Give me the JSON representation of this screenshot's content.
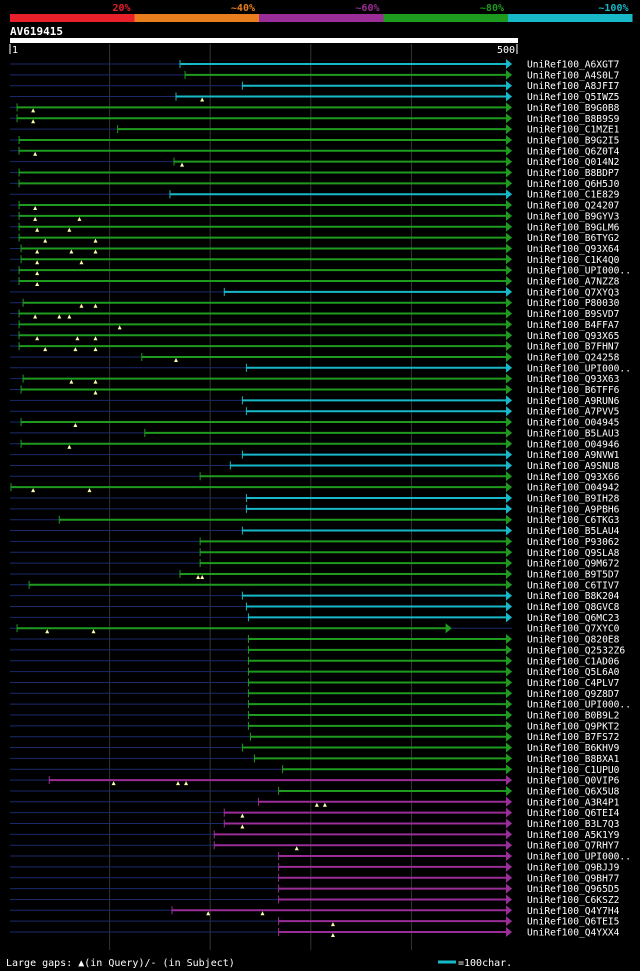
{
  "chart_data": {
    "type": "alignment-overview",
    "title": "AV619415",
    "query_length": 500,
    "axis": {
      "start_label": "1",
      "end_label": "500"
    },
    "identity_legend": [
      {
        "label": "20%",
        "color": "#e8202a"
      },
      {
        "label": "~40%",
        "color": "#e87e1e"
      },
      {
        "label": "~60%",
        "color": "#9a2d97"
      },
      {
        "label": "~80%",
        "color": "#1e9b1e"
      },
      {
        "label": "~100%",
        "color": "#17b8c8"
      }
    ],
    "footer": {
      "gaps_text": "Large gaps: ▲(in Query)/- (in Subject)",
      "scale_text": "=100char."
    },
    "hits": [
      {
        "name": "UniRef100_A6XGT7",
        "start": 170,
        "end": 500,
        "cls": "c",
        "gaps": []
      },
      {
        "name": "UniRef100_A4S0L7",
        "start": 175,
        "end": 500,
        "cls": "g",
        "gaps": []
      },
      {
        "name": "UniRef100_A8JFI7",
        "start": 232,
        "end": 500,
        "cls": "c",
        "gaps": []
      },
      {
        "name": "UniRef100_Q5IWZ5",
        "start": 166,
        "end": 500,
        "cls": "c",
        "gaps": [
          192
        ]
      },
      {
        "name": "UniRef100_B9G0B8",
        "start": 8,
        "end": 500,
        "cls": "g",
        "gaps": [
          24
        ]
      },
      {
        "name": "UniRef100_B8B9S9",
        "start": 8,
        "end": 500,
        "cls": "g",
        "gaps": [
          24
        ]
      },
      {
        "name": "UniRef100_C1MZE1",
        "start": 108,
        "end": 500,
        "cls": "g",
        "gaps": []
      },
      {
        "name": "UniRef100_B9G2I5",
        "start": 10,
        "end": 500,
        "cls": "g",
        "gaps": []
      },
      {
        "name": "UniRef100_Q6Z0T4",
        "start": 10,
        "end": 500,
        "cls": "g",
        "gaps": [
          26
        ]
      },
      {
        "name": "UniRef100_Q014N2",
        "start": 164,
        "end": 500,
        "cls": "g",
        "gaps": [
          172
        ]
      },
      {
        "name": "UniRef100_B8BDP7",
        "start": 10,
        "end": 500,
        "cls": "g",
        "gaps": []
      },
      {
        "name": "UniRef100_Q6H5J0",
        "start": 10,
        "end": 500,
        "cls": "g",
        "gaps": []
      },
      {
        "name": "UniRef100_C1E829",
        "start": 160,
        "end": 500,
        "cls": "c",
        "gaps": []
      },
      {
        "name": "UniRef100_Q24207",
        "start": 10,
        "end": 500,
        "cls": "g",
        "gaps": [
          26
        ]
      },
      {
        "name": "UniRef100_B9GYV3",
        "start": 10,
        "end": 500,
        "cls": "g",
        "gaps": [
          26,
          70
        ]
      },
      {
        "name": "UniRef100_B9GLM6",
        "start": 10,
        "end": 500,
        "cls": "g",
        "gaps": [
          28,
          60
        ]
      },
      {
        "name": "UniRef100_B6TYG2",
        "start": 10,
        "end": 500,
        "cls": "g",
        "gaps": [
          36,
          86
        ]
      },
      {
        "name": "UniRef100_Q93X64",
        "start": 12,
        "end": 500,
        "cls": "g",
        "gaps": [
          28,
          62,
          86
        ]
      },
      {
        "name": "UniRef100_C1K4Q0",
        "start": 12,
        "end": 500,
        "cls": "g",
        "gaps": [
          28,
          72
        ]
      },
      {
        "name": "UniRef100_UPI000..",
        "start": 10,
        "end": 500,
        "cls": "g",
        "gaps": [
          28
        ]
      },
      {
        "name": "UniRef100_A7NZZ8",
        "start": 10,
        "end": 500,
        "cls": "g",
        "gaps": [
          28
        ]
      },
      {
        "name": "UniRef100_Q7XYQ3",
        "start": 214,
        "end": 500,
        "cls": "c",
        "gaps": []
      },
      {
        "name": "UniRef100_P80030",
        "start": 14,
        "end": 500,
        "cls": "g",
        "gaps": [
          72,
          86
        ]
      },
      {
        "name": "UniRef100_B9SVD7",
        "start": 10,
        "end": 500,
        "cls": "g",
        "gaps": [
          26,
          50,
          60
        ]
      },
      {
        "name": "UniRef100_B4FFA7",
        "start": 10,
        "end": 500,
        "cls": "g",
        "gaps": [
          110
        ]
      },
      {
        "name": "UniRef100_Q93X65",
        "start": 10,
        "end": 500,
        "cls": "g",
        "gaps": [
          28,
          68,
          86
        ]
      },
      {
        "name": "UniRef100_B7FHN7",
        "start": 10,
        "end": 500,
        "cls": "g",
        "gaps": [
          36,
          66,
          86
        ]
      },
      {
        "name": "UniRef100_Q24258",
        "start": 132,
        "end": 500,
        "cls": "g",
        "gaps": [
          166
        ]
      },
      {
        "name": "UniRef100_UPI000..",
        "start": 236,
        "end": 500,
        "cls": "c",
        "gaps": []
      },
      {
        "name": "UniRef100_Q93X63",
        "start": 14,
        "end": 500,
        "cls": "g",
        "gaps": [
          62,
          86
        ]
      },
      {
        "name": "UniRef100_B6TFF6",
        "start": 12,
        "end": 500,
        "cls": "g",
        "gaps": [
          86
        ]
      },
      {
        "name": "UniRef100_A9RUN6",
        "start": 232,
        "end": 500,
        "cls": "c",
        "gaps": []
      },
      {
        "name": "UniRef100_A7PVV5",
        "start": 236,
        "end": 500,
        "cls": "c",
        "gaps": []
      },
      {
        "name": "UniRef100_O04945",
        "start": 12,
        "end": 500,
        "cls": "g",
        "gaps": [
          66
        ]
      },
      {
        "name": "UniRef100_B5LAU3",
        "start": 135,
        "end": 500,
        "cls": "g",
        "gaps": []
      },
      {
        "name": "UniRef100_O04946",
        "start": 12,
        "end": 500,
        "cls": "g",
        "gaps": [
          60
        ]
      },
      {
        "name": "UniRef100_A9NVW1",
        "start": 232,
        "end": 500,
        "cls": "c",
        "gaps": []
      },
      {
        "name": "UniRef100_A9SNU8",
        "start": 220,
        "end": 500,
        "cls": "c",
        "gaps": []
      },
      {
        "name": "UniRef100_Q93X66",
        "start": 190,
        "end": 500,
        "cls": "g",
        "gaps": []
      },
      {
        "name": "UniRef100_O04942",
        "start": 2,
        "end": 500,
        "cls": "g",
        "gaps": [
          24,
          80
        ]
      },
      {
        "name": "UniRef100_B9IH28",
        "start": 236,
        "end": 500,
        "cls": "c",
        "gaps": []
      },
      {
        "name": "UniRef100_A9PBH6",
        "start": 236,
        "end": 500,
        "cls": "c",
        "gaps": []
      },
      {
        "name": "UniRef100_C6TKG3",
        "start": 50,
        "end": 500,
        "cls": "g",
        "gaps": []
      },
      {
        "name": "UniRef100_B5LAU4",
        "start": 232,
        "end": 500,
        "cls": "c",
        "gaps": []
      },
      {
        "name": "UniRef100_P93062",
        "start": 190,
        "end": 500,
        "cls": "g",
        "gaps": []
      },
      {
        "name": "UniRef100_Q9SLA8",
        "start": 190,
        "end": 500,
        "cls": "g",
        "gaps": []
      },
      {
        "name": "UniRef100_Q9M672",
        "start": 190,
        "end": 500,
        "cls": "g",
        "gaps": []
      },
      {
        "name": "UniRef100_B9T5D7",
        "start": 170,
        "end": 500,
        "cls": "g",
        "gaps": [
          188,
          192
        ]
      },
      {
        "name": "UniRef100_C6TIV7",
        "start": 20,
        "end": 500,
        "cls": "g",
        "gaps": []
      },
      {
        "name": "UniRef100_B8K204",
        "start": 232,
        "end": 500,
        "cls": "c",
        "gaps": []
      },
      {
        "name": "UniRef100_Q8GVC8",
        "start": 236,
        "end": 500,
        "cls": "c",
        "gaps": []
      },
      {
        "name": "UniRef100_Q6MC23",
        "start": 238,
        "end": 500,
        "cls": "c",
        "gaps": []
      },
      {
        "name": "UniRef100_Q7XYC0",
        "start": 8,
        "end": 440,
        "cls": "g",
        "gaps": [
          38,
          84
        ]
      },
      {
        "name": "UniRef100_Q820E8",
        "start": 238,
        "end": 500,
        "cls": "g",
        "gaps": []
      },
      {
        "name": "UniRef100_Q2532Z6",
        "start": 238,
        "end": 500,
        "cls": "g",
        "gaps": []
      },
      {
        "name": "UniRef100_C1AD06",
        "start": 238,
        "end": 500,
        "cls": "g",
        "gaps": []
      },
      {
        "name": "UniRef100_Q5L6A0",
        "start": 238,
        "end": 500,
        "cls": "g",
        "gaps": []
      },
      {
        "name": "UniRef100_C4PLV7",
        "start": 238,
        "end": 500,
        "cls": "g",
        "gaps": []
      },
      {
        "name": "UniRef100_Q9Z8D7",
        "start": 238,
        "end": 500,
        "cls": "g",
        "gaps": []
      },
      {
        "name": "UniRef100_UPI000..",
        "start": 238,
        "end": 500,
        "cls": "g",
        "gaps": []
      },
      {
        "name": "UniRef100_B0B9L2",
        "start": 238,
        "end": 500,
        "cls": "g",
        "gaps": []
      },
      {
        "name": "UniRef100_Q9PKT2",
        "start": 238,
        "end": 500,
        "cls": "g",
        "gaps": []
      },
      {
        "name": "UniRef100_B7FS72",
        "start": 240,
        "end": 500,
        "cls": "g",
        "gaps": []
      },
      {
        "name": "UniRef100_B6KHV9",
        "start": 232,
        "end": 500,
        "cls": "g",
        "gaps": []
      },
      {
        "name": "UniRef100_B8BXA1",
        "start": 244,
        "end": 500,
        "cls": "g",
        "gaps": []
      },
      {
        "name": "UniRef100_C1UPU0",
        "start": 272,
        "end": 500,
        "cls": "g",
        "gaps": []
      },
      {
        "name": "UniRef100_Q0VIP6",
        "start": 40,
        "end": 500,
        "cls": "p",
        "gaps": [
          104,
          168,
          176
        ]
      },
      {
        "name": "UniRef100_Q6X5U8",
        "start": 268,
        "end": 500,
        "cls": "g",
        "gaps": []
      },
      {
        "name": "UniRef100_A3R4P1",
        "start": 248,
        "end": 500,
        "cls": "p",
        "gaps": [
          306,
          314
        ]
      },
      {
        "name": "UniRef100_Q6TEI4",
        "start": 214,
        "end": 500,
        "cls": "p",
        "gaps": [
          232
        ]
      },
      {
        "name": "UniRef100_B3L7Q3",
        "start": 214,
        "end": 500,
        "cls": "p",
        "gaps": [
          232
        ]
      },
      {
        "name": "UniRef100_A5K1Y9",
        "start": 204,
        "end": 500,
        "cls": "p",
        "gaps": []
      },
      {
        "name": "UniRef100_Q7RHY7",
        "start": 204,
        "end": 500,
        "cls": "p",
        "gaps": [
          286
        ]
      },
      {
        "name": "UniRef100_UPI000..",
        "start": 268,
        "end": 500,
        "cls": "p",
        "gaps": []
      },
      {
        "name": "UniRef100_Q9BJJ9",
        "start": 268,
        "end": 500,
        "cls": "p",
        "gaps": []
      },
      {
        "name": "UniRef100_Q9BH77",
        "start": 268,
        "end": 500,
        "cls": "p",
        "gaps": []
      },
      {
        "name": "UniRef100_Q965D5",
        "start": 268,
        "end": 500,
        "cls": "p",
        "gaps": []
      },
      {
        "name": "UniRef100_C6KSZ2",
        "start": 268,
        "end": 500,
        "cls": "p",
        "gaps": []
      },
      {
        "name": "UniRef100_Q4Y7H4",
        "start": 162,
        "end": 500,
        "cls": "p",
        "gaps": [
          198,
          252
        ]
      },
      {
        "name": "UniRef100_Q6TEI5",
        "start": 268,
        "end": 500,
        "cls": "p",
        "gaps": [
          322
        ]
      },
      {
        "name": "UniRef100_Q4YXX4",
        "start": 268,
        "end": 500,
        "cls": "p",
        "gaps": [
          322
        ]
      }
    ],
    "class_colors": {
      "c": "#17b8c8",
      "g": "#1e9b1e",
      "p": "#9a2d97"
    },
    "line_colors": {
      "background": "#000000",
      "unaligned": "#1a2a6a",
      "grid": "#333333",
      "triangle": "#ffffaa"
    }
  }
}
